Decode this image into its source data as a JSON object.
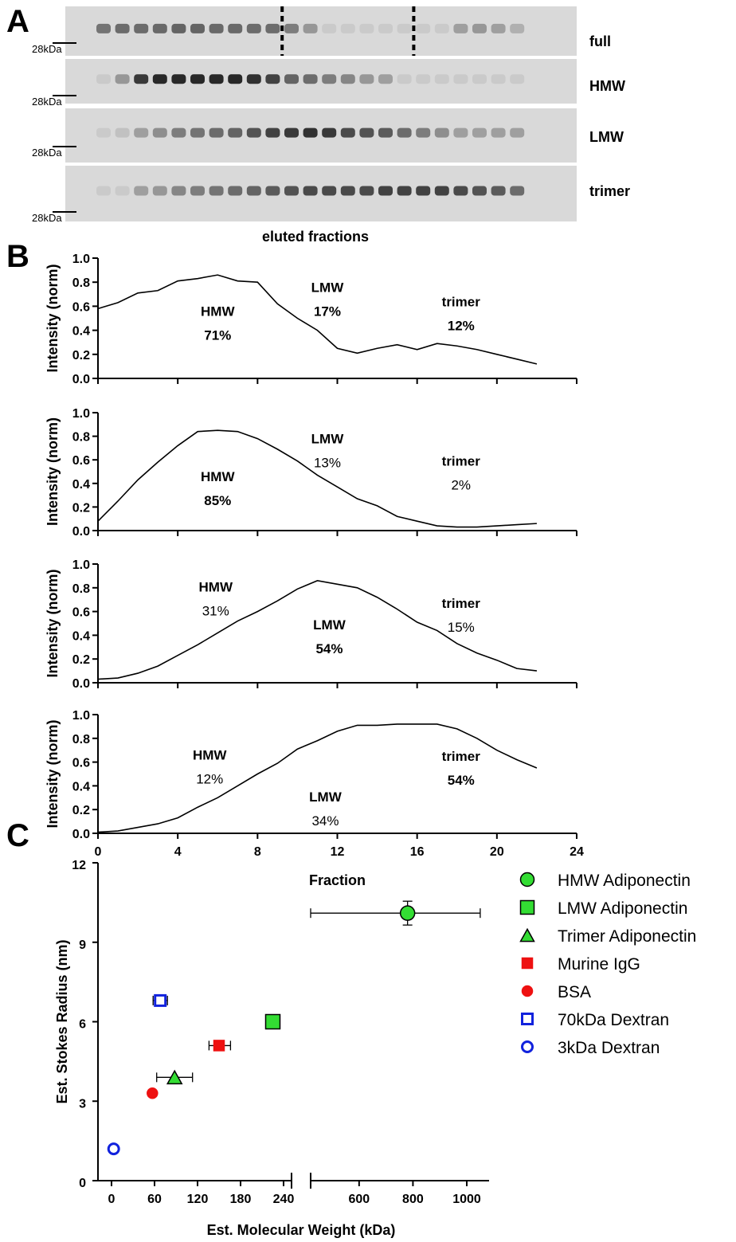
{
  "figure": {
    "panel_labels": [
      "A",
      "B",
      "C"
    ]
  },
  "blots": {
    "marker_label": "28kDa",
    "xlabel": "eluted fractions",
    "rows": [
      {
        "label": "full",
        "bands": [
          0.55,
          0.6,
          0.6,
          0.62,
          0.65,
          0.65,
          0.62,
          0.62,
          0.6,
          0.6,
          0.5,
          0.35,
          0.05,
          0.05,
          0.05,
          0.05,
          0.05,
          0.05,
          0.05,
          0.3,
          0.35,
          0.3,
          0.2
        ],
        "dashed_after": [
          10,
          17
        ]
      },
      {
        "label": "HMW",
        "bands": [
          0.05,
          0.35,
          0.9,
          1.0,
          1.0,
          1.0,
          1.0,
          1.0,
          0.95,
          0.85,
          0.65,
          0.6,
          0.5,
          0.45,
          0.35,
          0.3,
          0.05,
          0.05,
          0.05,
          0.05,
          0.05,
          0.05,
          0.05
        ]
      },
      {
        "label": "LMW",
        "bands": [
          0.05,
          0.1,
          0.3,
          0.4,
          0.5,
          0.55,
          0.6,
          0.65,
          0.75,
          0.85,
          0.9,
          0.95,
          0.9,
          0.8,
          0.75,
          0.7,
          0.6,
          0.5,
          0.4,
          0.3,
          0.3,
          0.3,
          0.3
        ]
      },
      {
        "label": "trimer",
        "bands": [
          0.05,
          0.05,
          0.3,
          0.35,
          0.45,
          0.5,
          0.55,
          0.6,
          0.65,
          0.7,
          0.75,
          0.8,
          0.8,
          0.8,
          0.8,
          0.85,
          0.85,
          0.85,
          0.85,
          0.8,
          0.75,
          0.7,
          0.6
        ]
      }
    ]
  },
  "chart_data": [
    {
      "type": "line",
      "xlabel": "",
      "ylabel": "Intensity (norm)",
      "xlim": [
        0,
        24
      ],
      "ylim": [
        0,
        1.0
      ],
      "yticks": [
        "0.0",
        "0.2",
        "0.4",
        "0.6",
        "0.8",
        "1.0"
      ],
      "x": [
        0,
        1,
        2,
        3,
        4,
        5,
        6,
        7,
        8,
        9,
        10,
        11,
        12,
        13,
        14,
        15,
        16,
        17,
        18,
        19,
        20,
        21,
        22
      ],
      "values": [
        0.58,
        0.63,
        0.71,
        0.73,
        0.81,
        0.83,
        0.86,
        0.81,
        0.8,
        0.62,
        0.5,
        0.4,
        0.25,
        0.21,
        0.25,
        0.28,
        0.24,
        0.29,
        0.27,
        0.24,
        0.2,
        0.16,
        0.12
      ],
      "annotations": [
        {
          "name": "HMW",
          "pct": "71%",
          "x": 6.0,
          "y": 0.52,
          "bold_pct": true
        },
        {
          "name": "LMW",
          "pct": "17%",
          "x": 11.5,
          "y": 0.72,
          "bold_pct": true
        },
        {
          "name": "trimer",
          "pct": "12%",
          "x": 18.2,
          "y": 0.6,
          "bold_pct": true
        }
      ]
    },
    {
      "type": "line",
      "xlabel": "",
      "ylabel": "Intensity (norm)",
      "xlim": [
        0,
        24
      ],
      "ylim": [
        0,
        1.0
      ],
      "yticks": [
        "0.0",
        "0.2",
        "0.4",
        "0.6",
        "0.8",
        "1.0"
      ],
      "x": [
        0,
        1,
        2,
        3,
        4,
        5,
        6,
        7,
        8,
        9,
        10,
        11,
        12,
        13,
        14,
        15,
        16,
        17,
        18,
        19,
        20,
        21,
        22
      ],
      "values": [
        0.08,
        0.25,
        0.43,
        0.58,
        0.72,
        0.84,
        0.85,
        0.84,
        0.78,
        0.69,
        0.59,
        0.47,
        0.37,
        0.27,
        0.21,
        0.12,
        0.08,
        0.04,
        0.03,
        0.03,
        0.04,
        0.05,
        0.06
      ],
      "annotations": [
        {
          "name": "HMW",
          "pct": "85%",
          "x": 6.0,
          "y": 0.42,
          "bold_pct": true
        },
        {
          "name": "LMW",
          "pct": "13%",
          "x": 11.5,
          "y": 0.74,
          "bold_pct": false
        },
        {
          "name": "trimer",
          "pct": "2%",
          "x": 18.2,
          "y": 0.55,
          "bold_pct": false
        }
      ]
    },
    {
      "type": "line",
      "xlabel": "",
      "ylabel": "Intensity (norm)",
      "xlim": [
        0,
        24
      ],
      "ylim": [
        0,
        1.0
      ],
      "yticks": [
        "0.0",
        "0.2",
        "0.4",
        "0.6",
        "0.8",
        "1.0"
      ],
      "x": [
        0,
        1,
        2,
        3,
        4,
        5,
        6,
        7,
        8,
        9,
        10,
        11,
        12,
        13,
        14,
        15,
        16,
        17,
        18,
        19,
        20,
        21,
        22
      ],
      "values": [
        0.03,
        0.04,
        0.08,
        0.14,
        0.23,
        0.32,
        0.42,
        0.52,
        0.6,
        0.69,
        0.79,
        0.86,
        0.83,
        0.8,
        0.72,
        0.62,
        0.51,
        0.44,
        0.33,
        0.25,
        0.19,
        0.12,
        0.1
      ],
      "annotations": [
        {
          "name": "HMW",
          "pct": "31%",
          "x": 5.9,
          "y": 0.77,
          "bold_pct": false
        },
        {
          "name": "LMW",
          "pct": "54%",
          "x": 11.6,
          "y": 0.45,
          "bold_pct": true
        },
        {
          "name": "trimer",
          "pct": "15%",
          "x": 18.2,
          "y": 0.63,
          "bold_pct": false
        }
      ]
    },
    {
      "type": "line",
      "xlabel": "Fraction",
      "ylabel": "Intensity (norm)",
      "xlim": [
        0,
        24
      ],
      "ylim": [
        0,
        1.0
      ],
      "yticks": [
        "0.0",
        "0.2",
        "0.4",
        "0.6",
        "0.8",
        "1.0"
      ],
      "xticks": [
        "0",
        "4",
        "8",
        "12",
        "16",
        "20",
        "24"
      ],
      "x": [
        0,
        1,
        2,
        3,
        4,
        5,
        6,
        7,
        8,
        9,
        10,
        11,
        12,
        13,
        14,
        15,
        16,
        17,
        18,
        19,
        20,
        21,
        22
      ],
      "values": [
        0.01,
        0.02,
        0.05,
        0.08,
        0.13,
        0.22,
        0.3,
        0.4,
        0.5,
        0.59,
        0.71,
        0.78,
        0.86,
        0.91,
        0.91,
        0.92,
        0.92,
        0.92,
        0.88,
        0.8,
        0.7,
        0.62,
        0.55
      ],
      "annotations": [
        {
          "name": "HMW",
          "pct": "12%",
          "x": 5.6,
          "y": 0.62,
          "bold_pct": false
        },
        {
          "name": "LMW",
          "pct": "34%",
          "x": 11.4,
          "y": 0.27,
          "bold_pct": false
        },
        {
          "name": "trimer",
          "pct": "54%",
          "x": 18.2,
          "y": 0.61,
          "bold_pct": true
        }
      ]
    },
    {
      "type": "scatter",
      "xlabel": "Est. Molecular Weight (kDa)",
      "ylabel": "Est. Stokes Radius  (nm)",
      "ylim": [
        0,
        12
      ],
      "yticks": [
        "0",
        "3",
        "6",
        "9",
        "12"
      ],
      "x_segments": [
        {
          "range": [
            0,
            240
          ],
          "ticks": [
            "0",
            "60",
            "120",
            "180",
            "240"
          ]
        },
        {
          "range": [
            420,
            1000
          ],
          "ticks": [
            "600",
            "800",
            "1000"
          ]
        }
      ],
      "series": [
        {
          "name": "HMW Adiponectin",
          "marker": "circle",
          "color": "#33dd33",
          "filled": true,
          "x": 780,
          "y": 10.1,
          "xerr": [
            420,
            1050
          ],
          "yerr": [
            9.65,
            10.55
          ]
        },
        {
          "name": "LMW Adiponectin",
          "marker": "square",
          "color": "#33dd33",
          "filled": true,
          "x": 225,
          "y": 6.0
        },
        {
          "name": "Trimer Adiponectin",
          "marker": "triangle",
          "color": "#33dd33",
          "filled": true,
          "x": 88,
          "y": 3.9,
          "xerr": [
            63,
            113
          ]
        },
        {
          "name": "Murine IgG",
          "marker": "square",
          "color": "#ee1111",
          "filled": true,
          "x": 150,
          "y": 5.1,
          "xerr": [
            136,
            166
          ]
        },
        {
          "name": "BSA",
          "marker": "circle",
          "color": "#ee1111",
          "filled": true,
          "x": 57,
          "y": 3.3
        },
        {
          "name": "70kDa Dextran",
          "marker": "square",
          "color": "#1122dd",
          "filled": false,
          "x": 68,
          "y": 6.8,
          "xerr": [
            58,
            78
          ]
        },
        {
          "name": "3kDa Dextran",
          "marker": "circle",
          "color": "#1122dd",
          "filled": false,
          "x": 3,
          "y": 1.2
        }
      ]
    }
  ]
}
